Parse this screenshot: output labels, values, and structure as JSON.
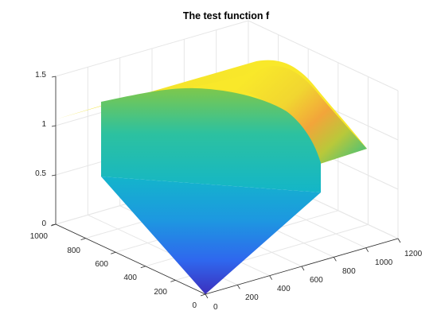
{
  "figure": {
    "background": "#ffffff"
  },
  "chart_data": {
    "type": "surface3d",
    "title": "The test function f",
    "xlabel": "",
    "ylabel": "",
    "zlabel": "",
    "grid": true,
    "colormap": "parula",
    "colormap_stops": [
      "#3e26a8",
      "#2f6bf0",
      "#1aa5dd",
      "#16bfb3",
      "#44c06f",
      "#9cc73b",
      "#e0c62e",
      "#f9e82a"
    ],
    "x_axis": {
      "range": [
        0,
        1200
      ],
      "ticks": [
        "0",
        "200",
        "400",
        "600",
        "800",
        "1000",
        "1200"
      ]
    },
    "y_axis": {
      "range": [
        0,
        1000
      ],
      "ticks": [
        "0",
        "200",
        "400",
        "600",
        "800",
        "1000"
      ]
    },
    "z_axis": {
      "range": [
        0,
        1.5
      ],
      "ticks": [
        "0",
        "0.5",
        "1",
        "1.5"
      ]
    },
    "surface": {
      "description_values": {
        "x_range": [
          0,
          1000
        ],
        "y_range": [
          0,
          1000
        ],
        "z_at_origin": 0,
        "z_max": 1.4,
        "z_along_far_edges": 1.0
      }
    }
  }
}
